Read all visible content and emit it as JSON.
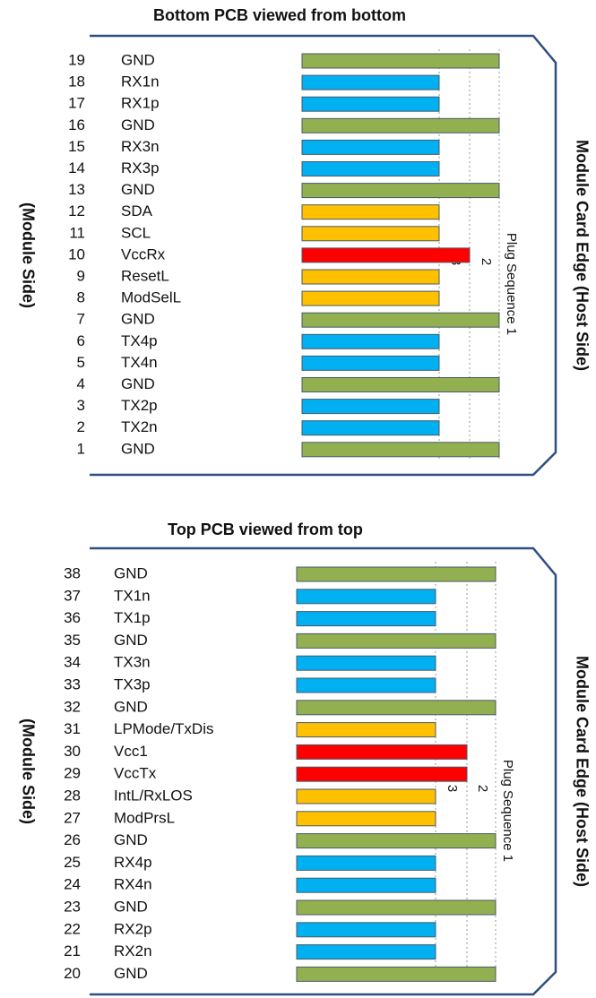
{
  "panels": [
    {
      "title": "Bottom PCB viewed from bottom",
      "left_label": "(Module Side)",
      "right_label": "Module Card Edge (Host Side)",
      "plug_sequence_label": "Plug Sequence 1",
      "sequence_marks": [
        "3",
        "2"
      ],
      "pins": [
        {
          "number": 19,
          "label": "GND"
        },
        {
          "number": 18,
          "label": "RX1n"
        },
        {
          "number": 17,
          "label": "RX1p"
        },
        {
          "number": 16,
          "label": "GND"
        },
        {
          "number": 15,
          "label": "RX3n"
        },
        {
          "number": 14,
          "label": "RX3p"
        },
        {
          "number": 13,
          "label": "GND"
        },
        {
          "number": 12,
          "label": "SDA"
        },
        {
          "number": 11,
          "label": "SCL"
        },
        {
          "number": 10,
          "label": "VccRx"
        },
        {
          "number": 9,
          "label": "ResetL"
        },
        {
          "number": 8,
          "label": "ModSelL"
        },
        {
          "number": 7,
          "label": "GND"
        },
        {
          "number": 6,
          "label": "TX4p"
        },
        {
          "number": 5,
          "label": "TX4n"
        },
        {
          "number": 4,
          "label": "GND"
        },
        {
          "number": 3,
          "label": "TX2p"
        },
        {
          "number": 2,
          "label": "TX2n"
        },
        {
          "number": 1,
          "label": "GND"
        }
      ]
    },
    {
      "title": "Top PCB viewed from top",
      "left_label": "(Module Side)",
      "right_label": "Module Card Edge (Host Side)",
      "plug_sequence_label": "Plug Sequence 1",
      "sequence_marks": [
        "3",
        "2"
      ],
      "pins": [
        {
          "number": 38,
          "label": "GND"
        },
        {
          "number": 37,
          "label": "TX1n"
        },
        {
          "number": 36,
          "label": "TX1p"
        },
        {
          "number": 35,
          "label": "GND"
        },
        {
          "number": 34,
          "label": "TX3n"
        },
        {
          "number": 33,
          "label": "TX3p"
        },
        {
          "number": 32,
          "label": "GND"
        },
        {
          "number": 31,
          "label": "LPMode/TxDis"
        },
        {
          "number": 30,
          "label": "Vcc1"
        },
        {
          "number": 29,
          "label": "VccTx"
        },
        {
          "number": 28,
          "label": "IntL/RxLOS"
        },
        {
          "number": 27,
          "label": "ModPrsL"
        },
        {
          "number": 26,
          "label": "GND"
        },
        {
          "number": 25,
          "label": "RX4p"
        },
        {
          "number": 24,
          "label": "RX4n"
        },
        {
          "number": 23,
          "label": "GND"
        },
        {
          "number": 22,
          "label": "RX2p"
        },
        {
          "number": 21,
          "label": "RX2n"
        },
        {
          "number": 20,
          "label": "GND"
        }
      ]
    }
  ]
}
